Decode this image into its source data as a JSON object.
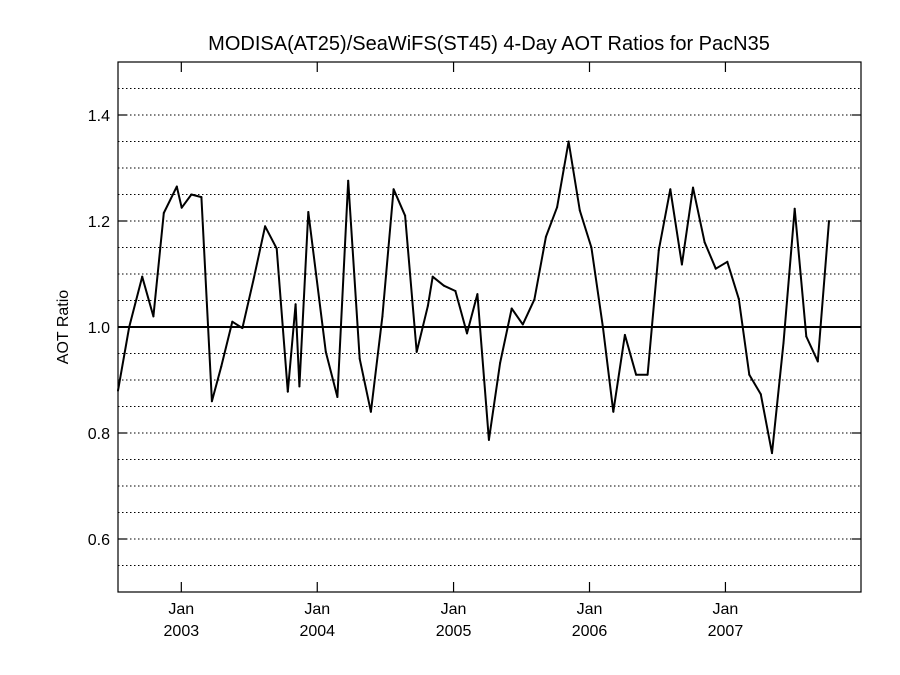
{
  "chart_data": {
    "type": "line",
    "title": "MODISA(AT25)/SeaWiFS(ST45) 4-Day AOT Ratios for PacN35",
    "xlabel": "",
    "ylabel": "AOT Ratio",
    "ylim": [
      0.5,
      1.5
    ],
    "xlim": [
      "2002-07-15",
      "2007-12-31"
    ],
    "yticks": [
      {
        "value": 0.6,
        "label": "0.6"
      },
      {
        "value": 0.8,
        "label": "0.8"
      },
      {
        "value": 1.0,
        "label": "1.0"
      },
      {
        "value": 1.2,
        "label": "1.2"
      },
      {
        "value": 1.4,
        "label": "1.4"
      }
    ],
    "xticks": [
      {
        "date": "2003-01-01",
        "month": "Jan",
        "year": "2003"
      },
      {
        "date": "2004-01-01",
        "month": "Jan",
        "year": "2004"
      },
      {
        "date": "2005-01-01",
        "month": "Jan",
        "year": "2005"
      },
      {
        "date": "2006-01-01",
        "month": "Jan",
        "year": "2006"
      },
      {
        "date": "2007-01-01",
        "month": "Jan",
        "year": "2007"
      }
    ],
    "grid": "horizontal-dotted",
    "reference_line": 1.0,
    "series": [
      {
        "points": [
          [
            "2002-07-15",
            0.88
          ],
          [
            "2002-08-14",
            1.0
          ],
          [
            "2002-09-18",
            1.095
          ],
          [
            "2002-10-18",
            1.02
          ],
          [
            "2002-11-15",
            1.215
          ],
          [
            "2002-12-20",
            1.265
          ],
          [
            "2003-01-02",
            1.225
          ],
          [
            "2003-01-28",
            1.25
          ],
          [
            "2003-02-24",
            1.245
          ],
          [
            "2003-03-24",
            0.86
          ],
          [
            "2003-04-18",
            0.925
          ],
          [
            "2003-05-18",
            1.01
          ],
          [
            "2003-06-14",
            0.998
          ],
          [
            "2003-07-14",
            1.09
          ],
          [
            "2003-08-14",
            1.19
          ],
          [
            "2003-09-14",
            1.148
          ],
          [
            "2003-10-14",
            0.878
          ],
          [
            "2003-11-04",
            1.043
          ],
          [
            "2003-11-14",
            0.888
          ],
          [
            "2003-12-08",
            1.217
          ],
          [
            "2004-01-24",
            0.953
          ],
          [
            "2004-02-24",
            0.868
          ],
          [
            "2004-03-24",
            1.276
          ],
          [
            "2004-04-24",
            0.94
          ],
          [
            "2004-05-24",
            0.84
          ],
          [
            "2004-06-24",
            1.02
          ],
          [
            "2004-07-24",
            1.26
          ],
          [
            "2004-08-24",
            1.21
          ],
          [
            "2004-09-24",
            0.953
          ],
          [
            "2004-10-24",
            1.04
          ],
          [
            "2004-11-06",
            1.095
          ],
          [
            "2004-12-06",
            1.078
          ],
          [
            "2005-01-06",
            1.068
          ],
          [
            "2005-02-06",
            0.988
          ],
          [
            "2005-03-06",
            1.062
          ],
          [
            "2005-04-06",
            0.787
          ],
          [
            "2005-05-06",
            0.932
          ],
          [
            "2005-06-06",
            1.035
          ],
          [
            "2005-07-06",
            1.005
          ],
          [
            "2005-08-06",
            1.052
          ],
          [
            "2005-09-06",
            1.17
          ],
          [
            "2005-10-06",
            1.226
          ],
          [
            "2005-11-06",
            1.35
          ],
          [
            "2005-12-06",
            1.22
          ],
          [
            "2006-01-06",
            1.15
          ],
          [
            "2006-02-06",
            1.0
          ],
          [
            "2006-03-06",
            0.84
          ],
          [
            "2006-04-06",
            0.985
          ],
          [
            "2006-05-06",
            0.91
          ],
          [
            "2006-06-06",
            0.91
          ],
          [
            "2006-07-06",
            1.145
          ],
          [
            "2006-08-06",
            1.26
          ],
          [
            "2006-09-06",
            1.118
          ],
          [
            "2006-10-06",
            1.263
          ],
          [
            "2006-11-06",
            1.16
          ],
          [
            "2006-12-06",
            1.11
          ],
          [
            "2007-01-06",
            1.123
          ],
          [
            "2007-02-06",
            1.053
          ],
          [
            "2007-03-06",
            0.91
          ],
          [
            "2007-04-06",
            0.873
          ],
          [
            "2007-05-06",
            0.762
          ],
          [
            "2007-06-06",
            0.97
          ],
          [
            "2007-07-06",
            1.223
          ],
          [
            "2007-08-06",
            0.982
          ],
          [
            "2007-09-06",
            0.935
          ],
          [
            "2007-10-06",
            1.2
          ]
        ]
      }
    ]
  }
}
